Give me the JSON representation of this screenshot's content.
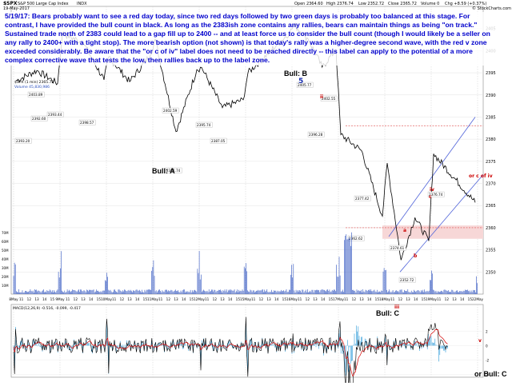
{
  "header": {
    "symbol": "$SPX",
    "name": "S&P 500 Large Cap Index",
    "exchange": "INDX",
    "date": "19-May-2017",
    "open": "Open 2364.60",
    "high": "High 2376.74",
    "low": "Low 2352.72",
    "close": "Close 2365.72",
    "volume": "Volume 0",
    "change": "Chg +8.59 (+0.37%)",
    "credit": "© StockCharts.com"
  },
  "note": "5/19/17:  Bears probably want to see a red day today, since two red days followed by two green days is probably too balanced at this stage.  For contrast, I have provided the bull count in black.  As long as the 2383ish zone contains any rallies, bears can maintain things as being \"on track.\"  Sustained trade north of 2383 could lead to a gap fill up to 2400 -- and at least force us to consider the bull count (though I would likely be a seller on any rally to 2400+ with a tight stop).  The more bearish option (not shown) is that today's rally was a higher-degree second wave, with the red v zone exceeded considerably.  Be aware that the \"or c of iv\" label does not need to be reached directly -- this label can apply to the potential of a more complex corrective wave that tests the low, then rallies back up to the label zone.",
  "legend": {
    "price": "$SPX (1 min) 2365.72",
    "volume": "Volume 45,830,986",
    "macd": "MACD(12,26,9) -0.516, -0.099, -0.417"
  },
  "labels": {
    "bull_b": "Bull: B",
    "bull_a": "Bull: A",
    "bull_c": "Bull: C",
    "or_bull_c": "or Bull: C",
    "wave_5": "5",
    "ii": "ii",
    "iii": "iii",
    "iv": "iv",
    "v": "v",
    "a": "a",
    "b": "b",
    "c": "c",
    "or_c_of_iv": "or c of iv"
  },
  "colors": {
    "price": "#000000",
    "volume": "#2a4fbf",
    "macd": "#000000",
    "signal": "#d40000",
    "histogram": "#2a9ad8",
    "note": "#0000cc",
    "wave_red": "#cc0000",
    "channel": "#4f63d9",
    "shade_red": "#f7d7d7",
    "shade_blue": "#d6dcff",
    "levels": "#e05050"
  },
  "chart_data": [
    {
      "type": "line",
      "title": "$SPX (1 min)",
      "ylim": [
        2345,
        2410
      ],
      "yticks": [
        2350,
        2355,
        2360,
        2365,
        2370,
        2375,
        2380,
        2385,
        2390,
        2395,
        2400,
        2405
      ],
      "sessions": [
        "8May",
        "9May",
        "10May",
        "11May",
        "12May",
        "15May",
        "16May",
        "17May",
        "18May",
        "19May"
      ],
      "xticks": [
        "8May",
        "11",
        "12",
        "13",
        "14",
        "15",
        "9May",
        "11",
        "12",
        "13",
        "14",
        "15",
        "10May",
        "11",
        "12",
        "13",
        "14",
        "15",
        "11May",
        "11",
        "12",
        "13",
        "14",
        "15",
        "12May",
        "11",
        "12",
        "13",
        "14",
        "15",
        "15May",
        "11",
        "12",
        "13",
        "14",
        "15",
        "16May",
        "11",
        "12",
        "13",
        "14",
        "15",
        "17May",
        "11",
        "12",
        "13",
        "14",
        "15",
        "18May",
        "11",
        "12",
        "13",
        "14",
        "15",
        "19May",
        "11",
        "12",
        "13",
        "14",
        "15",
        "22May"
      ],
      "key_points": [
        {
          "x": "8May open",
          "y": 2393.2
        },
        {
          "x": "8May",
          "y": 2395.5
        },
        {
          "x": "8May",
          "y": 2392.6
        },
        {
          "x": "9May",
          "y": 2403.9
        },
        {
          "x": "9May",
          "y": 2401.8
        },
        {
          "x": "9May",
          "y": 2393.4
        },
        {
          "x": "10May",
          "y": 2398.6
        },
        {
          "x": "10May",
          "y": 2393.0
        },
        {
          "x": "10May",
          "y": 2399.0
        },
        {
          "x": "11May",
          "y": 2402.6
        },
        {
          "x": "11May",
          "y": 2381.7
        },
        {
          "x": "11May",
          "y": 2395.7
        },
        {
          "x": "12May",
          "y": 2396.2
        },
        {
          "x": "12May",
          "y": 2387.1
        },
        {
          "x": "12May",
          "y": 2388.9
        },
        {
          "x": "15May",
          "y": 2395.0
        },
        {
          "x": "15May",
          "y": 2404.1
        },
        {
          "x": "16May",
          "y": 2405.8
        },
        {
          "x": "16May",
          "y": 2402.6
        },
        {
          "x": "16May",
          "y": 2396.3
        },
        {
          "x": "16May",
          "y": 2400.2
        },
        {
          "x": "17May",
          "y": 2381.0
        },
        {
          "x": "17May",
          "y": 2377.4
        },
        {
          "x": "17May",
          "y": 2362.6
        },
        {
          "x": "18May",
          "y": 2374.6
        },
        {
          "x": "18May",
          "y": 2352.7
        },
        {
          "x": "18May",
          "y": 2362.3
        },
        {
          "x": "18May",
          "y": 2357.0
        },
        {
          "x": "19May",
          "y": 2376.7
        },
        {
          "x": "19May close",
          "y": 2365.7
        }
      ],
      "level_lines": [
        2383,
        2360
      ],
      "annotations": [
        "2393.20",
        "2403.89",
        "2392.60",
        "2393.44",
        "2398.57",
        "2402.59",
        "2381.74",
        "2395.74",
        "2387.05",
        "2405.77",
        "2396.28",
        "2402.55",
        "2377.42",
        "2362.62",
        "2374.61",
        "2352.72",
        "2376.74"
      ]
    },
    {
      "type": "bar",
      "title": "Volume",
      "ylim": [
        0,
        80
      ],
      "yticks": [
        "10M",
        "20M",
        "30M",
        "40M",
        "50M",
        "60M",
        "70M"
      ]
    },
    {
      "type": "line",
      "title": "MACD(12,26,9)",
      "series": [
        {
          "name": "MACD",
          "value": -0.516
        },
        {
          "name": "Signal",
          "value": -0.099
        },
        {
          "name": "Histogram",
          "value": -0.417
        }
      ],
      "yticks": [
        "-4",
        "-2",
        "0",
        "2"
      ]
    }
  ]
}
